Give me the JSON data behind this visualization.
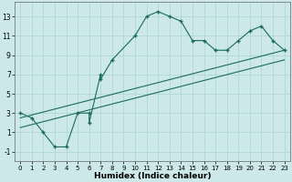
{
  "xlabel": "Humidex (Indice chaleur)",
  "bg_color": "#cce8e8",
  "line_color": "#1a6b5a",
  "grid_color": "#aad4d4",
  "xlim": [
    -0.5,
    23.5
  ],
  "ylim": [
    -2,
    14.5
  ],
  "yticks": [
    -1,
    1,
    3,
    5,
    7,
    9,
    11,
    13
  ],
  "xticks": [
    0,
    1,
    2,
    3,
    4,
    5,
    6,
    7,
    8,
    9,
    10,
    11,
    12,
    13,
    14,
    15,
    16,
    17,
    18,
    19,
    20,
    21,
    22,
    23
  ],
  "line1_x": [
    0,
    1,
    2,
    3,
    4,
    5,
    6,
    6,
    7,
    7,
    8,
    10,
    11,
    12,
    13,
    14,
    15,
    16,
    17,
    18,
    19,
    20,
    21,
    22,
    23
  ],
  "line1_y": [
    3,
    2.5,
    1,
    -0.5,
    -0.5,
    3,
    3,
    2,
    7,
    6.5,
    8.5,
    11,
    13,
    13.5,
    13,
    12.5,
    10.5,
    10.5,
    9.5,
    9.5,
    10.5,
    11.5,
    12,
    10.5,
    9.5
  ],
  "line2_x": [
    0,
    23
  ],
  "line2_y": [
    2.5,
    9.5
  ],
  "line3_x": [
    0,
    23
  ],
  "line3_y": [
    1.5,
    8.5
  ]
}
